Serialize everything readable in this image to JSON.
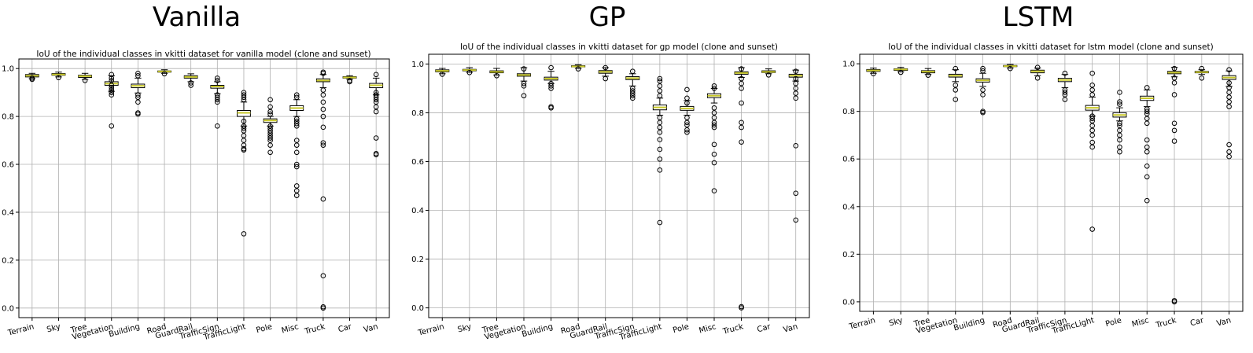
{
  "chart_data": [
    {
      "type": "box",
      "figure_title": "Vanilla",
      "title": "IoU of the individual classes in vkitti dataset for vanilla model (clone and sunset)",
      "ylim": [
        -0.04,
        1.04
      ],
      "yticks": [
        0.0,
        0.2,
        0.4,
        0.6,
        0.8,
        1.0
      ],
      "grid": true,
      "categories": [
        "Terrain",
        "Sky",
        "Tree",
        "Vegetation",
        "Building",
        "Road",
        "GuardRail",
        "TrafficSign",
        "TrafficLight",
        "Pole",
        "Misc",
        "Truck",
        "Car",
        "Van"
      ],
      "median": [
        0.97,
        0.975,
        0.968,
        0.937,
        0.928,
        0.988,
        0.965,
        0.925,
        0.815,
        0.783,
        0.835,
        0.95,
        0.963,
        0.93
      ],
      "q1": [
        0.965,
        0.972,
        0.963,
        0.93,
        0.92,
        0.985,
        0.96,
        0.918,
        0.8,
        0.775,
        0.825,
        0.945,
        0.96,
        0.92
      ],
      "q3": [
        0.975,
        0.979,
        0.972,
        0.945,
        0.935,
        0.99,
        0.97,
        0.93,
        0.825,
        0.79,
        0.845,
        0.957,
        0.966,
        0.938
      ],
      "whislo": [
        0.958,
        0.965,
        0.955,
        0.905,
        0.898,
        0.98,
        0.945,
        0.895,
        0.76,
        0.76,
        0.8,
        0.92,
        0.955,
        0.89
      ],
      "whishi": [
        0.98,
        0.985,
        0.98,
        0.97,
        0.96,
        0.995,
        0.978,
        0.945,
        0.86,
        0.8,
        0.87,
        0.975,
        0.97,
        0.96
      ],
      "fliers": [
        [
          0.955,
          0.96
        ],
        [
          0.962
        ],
        [
          0.95
        ],
        [
          0.76,
          0.89,
          0.9,
          0.91,
          0.92,
          0.93,
          0.95,
          0.96,
          0.975
        ],
        [
          0.81,
          0.815,
          0.86,
          0.88,
          0.89,
          0.97,
          0.98
        ],
        [
          0.978
        ],
        [
          0.93,
          0.94
        ],
        [
          0.76,
          0.86,
          0.87,
          0.88,
          0.89,
          0.95,
          0.96
        ],
        [
          0.31,
          0.66,
          0.665,
          0.68,
          0.7,
          0.72,
          0.74,
          0.75,
          0.76,
          0.78,
          0.87,
          0.88,
          0.89,
          0.9
        ],
        [
          0.65,
          0.68,
          0.7,
          0.71,
          0.72,
          0.73,
          0.74,
          0.75,
          0.76,
          0.81,
          0.82,
          0.84,
          0.87
        ],
        [
          0.47,
          0.49,
          0.51,
          0.59,
          0.6,
          0.65,
          0.68,
          0.7,
          0.76,
          0.77,
          0.78,
          0.79,
          0.88,
          0.89
        ],
        [
          0.0,
          0.005,
          0.135,
          0.455,
          0.68,
          0.69,
          0.755,
          0.8,
          0.83,
          0.86,
          0.89,
          0.91,
          0.98,
          0.985
        ],
        [
          0.945,
          0.95
        ],
        [
          0.64,
          0.645,
          0.71,
          0.82,
          0.84,
          0.86,
          0.87,
          0.88,
          0.89,
          0.9,
          0.975
        ]
      ]
    },
    {
      "type": "box",
      "figure_title": "GP",
      "title": "IoU of the individual classes in vkitti dataset for gp model (clone and sunset)",
      "ylim": [
        -0.04,
        1.04
      ],
      "yticks": [
        0.0,
        0.2,
        0.4,
        0.6,
        0.8,
        1.0
      ],
      "grid": true,
      "categories": [
        "Terrain",
        "Sky",
        "Tree",
        "Vegetation",
        "Building",
        "Road",
        "GuardRail",
        "TrafficSign",
        "TrafficLight",
        "Pole",
        "Misc",
        "Truck",
        "Car",
        "Van"
      ],
      "median": [
        0.972,
        0.975,
        0.968,
        0.955,
        0.94,
        0.99,
        0.968,
        0.942,
        0.822,
        0.818,
        0.87,
        0.963,
        0.968,
        0.952
      ],
      "q1": [
        0.968,
        0.972,
        0.964,
        0.95,
        0.934,
        0.988,
        0.962,
        0.936,
        0.812,
        0.81,
        0.862,
        0.958,
        0.965,
        0.946
      ],
      "q3": [
        0.976,
        0.978,
        0.972,
        0.96,
        0.946,
        0.993,
        0.973,
        0.948,
        0.832,
        0.826,
        0.878,
        0.968,
        0.972,
        0.958
      ],
      "whislo": [
        0.96,
        0.966,
        0.955,
        0.93,
        0.92,
        0.982,
        0.95,
        0.91,
        0.79,
        0.79,
        0.84,
        0.945,
        0.96,
        0.93
      ],
      "whishi": [
        0.982,
        0.985,
        0.982,
        0.985,
        0.97,
        0.997,
        0.985,
        0.96,
        0.86,
        0.85,
        0.9,
        0.985,
        0.98,
        0.975
      ],
      "fliers": [
        [
          0.958
        ],
        [
          0.965
        ],
        [
          0.952
        ],
        [
          0.87,
          0.91,
          0.92,
          0.98
        ],
        [
          0.82,
          0.825,
          0.9,
          0.91,
          0.92,
          0.985
        ],
        [
          0.98
        ],
        [
          0.94,
          0.985
        ],
        [
          0.86,
          0.87,
          0.88,
          0.89,
          0.9,
          0.97
        ],
        [
          0.35,
          0.565,
          0.61,
          0.65,
          0.69,
          0.72,
          0.74,
          0.76,
          0.78,
          0.87,
          0.89,
          0.91,
          0.93,
          0.94
        ],
        [
          0.72,
          0.73,
          0.75,
          0.76,
          0.78,
          0.84,
          0.86,
          0.895
        ],
        [
          0.48,
          0.595,
          0.63,
          0.67,
          0.74,
          0.75,
          0.76,
          0.78,
          0.8,
          0.82,
          0.9,
          0.91
        ],
        [
          0.0,
          0.005,
          0.68,
          0.74,
          0.76,
          0.84,
          0.9,
          0.92,
          0.94,
          0.98
        ],
        [
          0.955
        ],
        [
          0.36,
          0.47,
          0.665,
          0.86,
          0.88,
          0.9,
          0.92,
          0.94,
          0.97
        ]
      ]
    },
    {
      "type": "box",
      "figure_title": "LSTM",
      "title": "IoU of the individual classes in vkitti dataset for lstm model (clone and sunset)",
      "ylim": [
        -0.04,
        1.04
      ],
      "yticks": [
        0.0,
        0.2,
        0.4,
        0.6,
        0.8,
        1.0
      ],
      "grid": true,
      "categories": [
        "Terrain",
        "Sky",
        "Tree",
        "Vegetation",
        "Building",
        "Road",
        "GuardRail",
        "TrafficSign",
        "TrafficLight",
        "Pole",
        "Misc",
        "Truck",
        "Car",
        "Van"
      ],
      "median": [
        0.972,
        0.976,
        0.967,
        0.95,
        0.93,
        0.99,
        0.968,
        0.932,
        0.815,
        0.785,
        0.855,
        0.963,
        0.965,
        0.942
      ],
      "q1": [
        0.968,
        0.972,
        0.962,
        0.944,
        0.923,
        0.988,
        0.962,
        0.925,
        0.805,
        0.776,
        0.846,
        0.958,
        0.962,
        0.934
      ],
      "q3": [
        0.976,
        0.979,
        0.971,
        0.956,
        0.937,
        0.993,
        0.973,
        0.939,
        0.825,
        0.794,
        0.864,
        0.968,
        0.968,
        0.95
      ],
      "whislo": [
        0.96,
        0.966,
        0.955,
        0.925,
        0.905,
        0.982,
        0.95,
        0.9,
        0.78,
        0.76,
        0.82,
        0.945,
        0.955,
        0.905
      ],
      "whishi": [
        0.982,
        0.985,
        0.98,
        0.975,
        0.96,
        0.997,
        0.982,
        0.955,
        0.86,
        0.815,
        0.89,
        0.985,
        0.975,
        0.97
      ],
      "fliers": [
        [
          0.958
        ],
        [
          0.964
        ],
        [
          0.952
        ],
        [
          0.85,
          0.89,
          0.91,
          0.98
        ],
        [
          0.795,
          0.8,
          0.87,
          0.89,
          0.97,
          0.98
        ],
        [
          0.98
        ],
        [
          0.94,
          0.985
        ],
        [
          0.85,
          0.87,
          0.88,
          0.89,
          0.96
        ],
        [
          0.305,
          0.65,
          0.67,
          0.7,
          0.72,
          0.74,
          0.76,
          0.77,
          0.78,
          0.87,
          0.89,
          0.91,
          0.96
        ],
        [
          0.63,
          0.65,
          0.68,
          0.7,
          0.72,
          0.74,
          0.75,
          0.83,
          0.84,
          0.88
        ],
        [
          0.425,
          0.525,
          0.57,
          0.63,
          0.65,
          0.68,
          0.75,
          0.77,
          0.79,
          0.8,
          0.81,
          0.9
        ],
        [
          0.0,
          0.005,
          0.675,
          0.72,
          0.75,
          0.87,
          0.92,
          0.94,
          0.98
        ],
        [
          0.94,
          0.98
        ],
        [
          0.61,
          0.63,
          0.66,
          0.82,
          0.84,
          0.86,
          0.88,
          0.9,
          0.92,
          0.975
        ]
      ]
    }
  ]
}
